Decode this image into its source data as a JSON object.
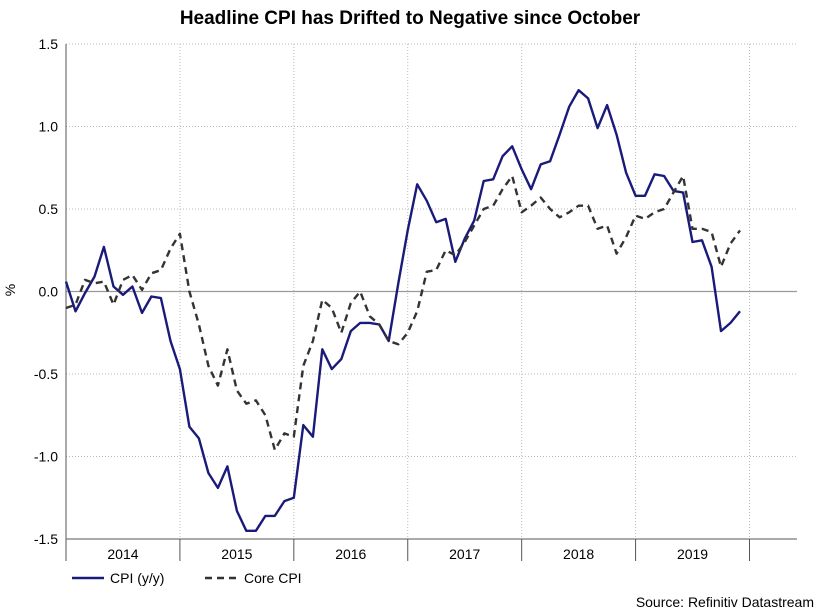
{
  "chart_data": {
    "type": "line",
    "title": "Headline CPI has Drifted to Negative since October",
    "ylabel": "%",
    "xlabel": "",
    "ylim": [
      -1.5,
      1.5
    ],
    "yticks": [
      1.5,
      1.0,
      0.5,
      0.0,
      -0.5,
      -1.0,
      -1.5
    ],
    "ytick_labels": [
      "1.5",
      "1.0",
      "0.5",
      "0.0",
      "-0.5",
      "-1.0",
      "-1.5"
    ],
    "x_range": [
      2013.5,
      2019.917
    ],
    "x_boundaries": [
      2013.5,
      2014.5,
      2015.5,
      2016.5,
      2017.5,
      2018.5,
      2019.5
    ],
    "year_labels": [
      {
        "label": "2014",
        "pos": 2014.0
      },
      {
        "label": "2015",
        "pos": 2015.0
      },
      {
        "label": "2016",
        "pos": 2016.0
      },
      {
        "label": "2017",
        "pos": 2017.0
      },
      {
        "label": "2018",
        "pos": 2018.0
      },
      {
        "label": "2019",
        "pos": 2019.0
      }
    ],
    "grid": true,
    "legend_position": "bottom-left",
    "source": "Source: Refinitiv Datastream",
    "series": [
      {
        "name": "CPI (y/y)",
        "color": "#1a1a7a",
        "style": "solid",
        "x": [
          2013.5,
          2013.583,
          2013.667,
          2013.75,
          2013.833,
          2013.917,
          2014.0,
          2014.083,
          2014.167,
          2014.25,
          2014.333,
          2014.417,
          2014.5,
          2014.583,
          2014.667,
          2014.75,
          2014.833,
          2014.917,
          2015.0,
          2015.083,
          2015.167,
          2015.25,
          2015.333,
          2015.417,
          2015.5,
          2015.583,
          2015.667,
          2015.75,
          2015.833,
          2015.917,
          2016.0,
          2016.083,
          2016.167,
          2016.25,
          2016.333,
          2016.417,
          2016.5,
          2016.583,
          2016.667,
          2016.75,
          2016.833,
          2016.917,
          2017.0,
          2017.083,
          2017.167,
          2017.25,
          2017.333,
          2017.417,
          2017.5,
          2017.583,
          2017.667,
          2017.75,
          2017.833,
          2017.917,
          2018.0,
          2018.083,
          2018.167,
          2018.25,
          2018.333,
          2018.417,
          2018.5,
          2018.583,
          2018.667,
          2018.75,
          2018.833,
          2018.917,
          2019.0,
          2019.083,
          2019.167,
          2019.25,
          2019.333,
          2019.417
        ],
        "values": [
          0.06,
          -0.12,
          -0.01,
          0.09,
          0.27,
          0.03,
          -0.02,
          0.03,
          -0.13,
          -0.03,
          -0.04,
          -0.3,
          -0.47,
          -0.82,
          -0.89,
          -1.1,
          -1.19,
          -1.06,
          -1.33,
          -1.45,
          -1.45,
          -1.36,
          -1.36,
          -1.27,
          -1.25,
          -0.81,
          -0.88,
          -0.35,
          -0.47,
          -0.41,
          -0.24,
          -0.19,
          -0.19,
          -0.2,
          -0.3,
          0.05,
          0.37,
          0.65,
          0.55,
          0.42,
          0.44,
          0.18,
          0.32,
          0.43,
          0.67,
          0.68,
          0.82,
          0.88,
          0.74,
          0.62,
          0.77,
          0.79,
          0.95,
          1.12,
          1.22,
          1.17,
          0.99,
          1.13,
          0.95,
          0.72,
          0.58,
          0.58,
          0.71,
          0.7,
          0.61,
          0.6,
          0.3,
          0.31,
          0.15,
          -0.24,
          -0.19,
          -0.12
        ]
      },
      {
        "name": "Core CPI",
        "color": "#333333",
        "style": "dashed",
        "x": [
          2013.5,
          2013.583,
          2013.667,
          2013.75,
          2013.833,
          2013.917,
          2014.0,
          2014.083,
          2014.167,
          2014.25,
          2014.333,
          2014.417,
          2014.5,
          2014.583,
          2014.667,
          2014.75,
          2014.833,
          2014.917,
          2015.0,
          2015.083,
          2015.167,
          2015.25,
          2015.333,
          2015.417,
          2015.5,
          2015.583,
          2015.667,
          2015.75,
          2015.833,
          2015.917,
          2016.0,
          2016.083,
          2016.167,
          2016.25,
          2016.333,
          2016.417,
          2016.5,
          2016.583,
          2016.667,
          2016.75,
          2016.833,
          2016.917,
          2017.0,
          2017.083,
          2017.167,
          2017.25,
          2017.333,
          2017.417,
          2017.5,
          2017.583,
          2017.667,
          2017.75,
          2017.833,
          2017.917,
          2018.0,
          2018.083,
          2018.167,
          2018.25,
          2018.333,
          2018.417,
          2018.5,
          2018.583,
          2018.667,
          2018.75,
          2018.833,
          2018.917,
          2019.0,
          2019.083,
          2019.167,
          2019.25,
          2019.333,
          2019.417
        ],
        "values": [
          -0.1,
          -0.08,
          0.07,
          0.05,
          0.06,
          -0.08,
          0.07,
          0.1,
          0.01,
          0.11,
          0.13,
          0.26,
          0.35,
          0.0,
          -0.2,
          -0.45,
          -0.57,
          -0.35,
          -0.6,
          -0.68,
          -0.66,
          -0.75,
          -0.96,
          -0.86,
          -0.88,
          -0.45,
          -0.3,
          -0.05,
          -0.1,
          -0.25,
          -0.07,
          0.0,
          -0.15,
          -0.2,
          -0.3,
          -0.32,
          -0.25,
          -0.12,
          0.12,
          0.13,
          0.25,
          0.22,
          0.3,
          0.4,
          0.5,
          0.52,
          0.62,
          0.7,
          0.48,
          0.52,
          0.57,
          0.5,
          0.45,
          0.48,
          0.52,
          0.52,
          0.38,
          0.4,
          0.23,
          0.33,
          0.46,
          0.44,
          0.48,
          0.5,
          0.6,
          0.7,
          0.38,
          0.38,
          0.36,
          0.15,
          0.29,
          0.37
        ]
      }
    ]
  }
}
